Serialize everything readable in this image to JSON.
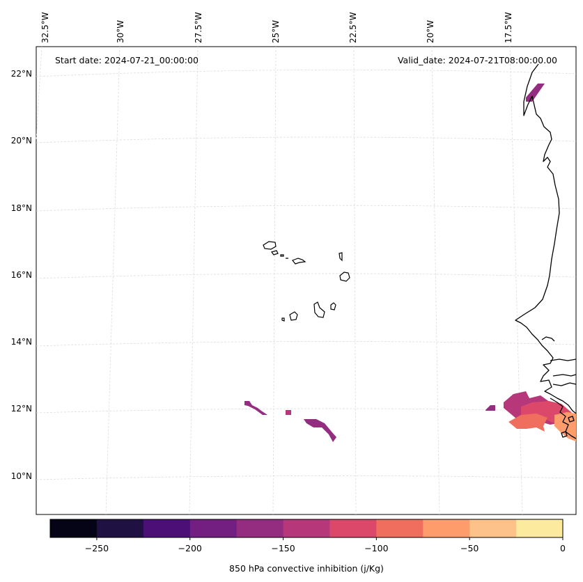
{
  "header": {
    "start_date": "Start date: 2024-07-21_00:00:00",
    "valid_date": "Valid_date: 2024-07-21T08:00:00.00"
  },
  "map": {
    "projection": "conic",
    "gridlines": true,
    "lon_labels": [
      "32.5°W",
      "30°W",
      "27.5°W",
      "25°W",
      "22.5°W",
      "20°W",
      "17.5°W"
    ],
    "lat_labels": [
      "22°N",
      "20°N",
      "18°N",
      "16°N",
      "14°N",
      "12°N",
      "10°N"
    ],
    "features": [
      "Cape Verde islands",
      "West African coastline"
    ]
  },
  "colorbar": {
    "label": "850 hPa convective inhibition (j/Kg)",
    "ticks": [
      "−250",
      "−200",
      "−150",
      "−100",
      "−50",
      "0"
    ],
    "range": [
      -275,
      0
    ],
    "step": 25,
    "colors": [
      "#050416",
      "#1f1142",
      "#4b0f77",
      "#721f81",
      "#942c80",
      "#b6377a",
      "#dc4869",
      "#f06e5e",
      "#fe9c6b",
      "#fdc18a",
      "#fcea9f"
    ]
  }
}
